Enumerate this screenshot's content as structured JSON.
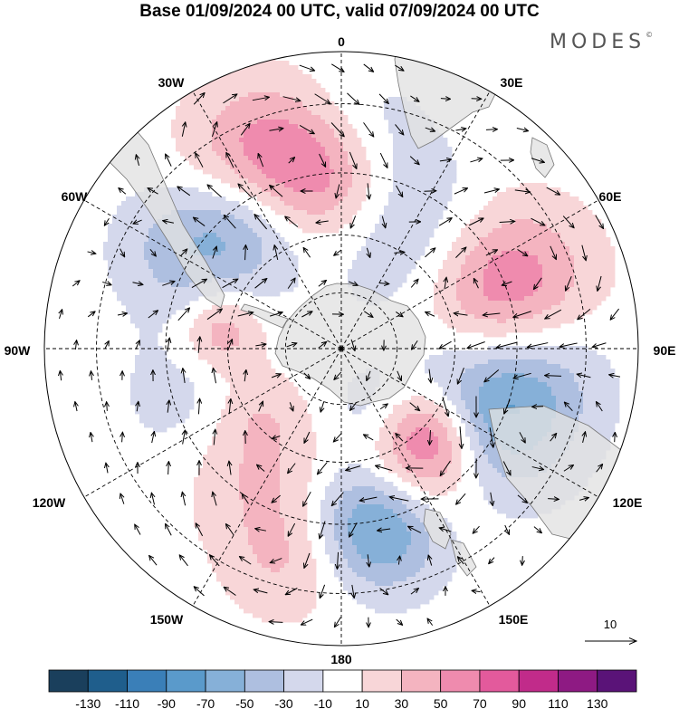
{
  "title": "Base 01/09/2024 00 UTC, valid 07/09/2024 00 UTC",
  "brand": "MODES",
  "brand_mark": "©",
  "longitude_labels": {
    "lon_0": "0",
    "lon_30e": "30E",
    "lon_60e": "60E",
    "lon_90e": "90E",
    "lon_120e": "120E",
    "lon_150e": "150E",
    "lon_180": "180",
    "lon_150w": "150W",
    "lon_120w": "120W",
    "lon_90w": "90W",
    "lon_60w": "60W",
    "lon_30w": "30W"
  },
  "vector_reference": {
    "label": "10",
    "value": 10
  },
  "colorbar": {
    "levels": [
      -130,
      -110,
      -90,
      -70,
      -50,
      -30,
      -10,
      10,
      30,
      50,
      70,
      90,
      110,
      130
    ],
    "level_labels": [
      "-130",
      "-110",
      "-90",
      "-70",
      "-50",
      "-30",
      "-10",
      "10",
      "30",
      "50",
      "70",
      "90",
      "110",
      "130"
    ],
    "colors": [
      "#1a3f5c",
      "#1f5e8c",
      "#3a7fb8",
      "#5a9acb",
      "#86b0d8",
      "#aebfe0",
      "#d4d8ec",
      "#ffffff",
      "#f8d6d8",
      "#f4b4c0",
      "#ef8bae",
      "#e35a9c",
      "#c12b8a",
      "#8e1a83",
      "#5a1378"
    ]
  },
  "colors": {
    "land": "#e2e2e2",
    "coast": "#777777",
    "grid": "#000000",
    "arrow": "#000000"
  },
  "anomaly_centers": [
    {
      "lon": 70,
      "lat": -46,
      "value": 82,
      "spread": 13
    },
    {
      "lon": 112,
      "lat": -48,
      "value": -82,
      "spread": 13
    },
    {
      "lon": 149,
      "lat": -53,
      "value": 75,
      "spread": 11
    },
    {
      "lon": 167,
      "lat": -45,
      "value": -100,
      "spread": 10
    },
    {
      "lon": 133,
      "lat": -58,
      "value": 55,
      "spread": 8
    },
    {
      "lon": -22,
      "lat": -38,
      "value": 62,
      "spread": 11
    },
    {
      "lon": -4,
      "lat": -46,
      "value": 48,
      "spread": 10
    },
    {
      "lon": -38,
      "lat": -50,
      "value": -48,
      "spread": 10
    },
    {
      "lon": -82,
      "lat": -58,
      "value": 50,
      "spread": 7
    },
    {
      "lon": -58,
      "lat": -42,
      "value": -38,
      "spread": 10
    },
    {
      "lon": 35,
      "lat": -55,
      "value": -38,
      "spread": 14
    },
    {
      "lon": 5,
      "lat": -36,
      "value": -22,
      "spread": 10
    },
    {
      "lon": 157,
      "lat": -70,
      "value": -25,
      "spread": 9
    },
    {
      "lon": -145,
      "lat": -52,
      "value": 32,
      "spread": 12
    },
    {
      "lon": -108,
      "lat": -50,
      "value": -22,
      "spread": 12
    },
    {
      "lon": -125,
      "lat": -62,
      "value": 22,
      "spread": 8
    },
    {
      "lon": 92,
      "lat": -38,
      "value": -22,
      "spread": 10
    },
    {
      "lon": -166,
      "lat": -36,
      "value": 32,
      "spread": 9
    }
  ]
}
